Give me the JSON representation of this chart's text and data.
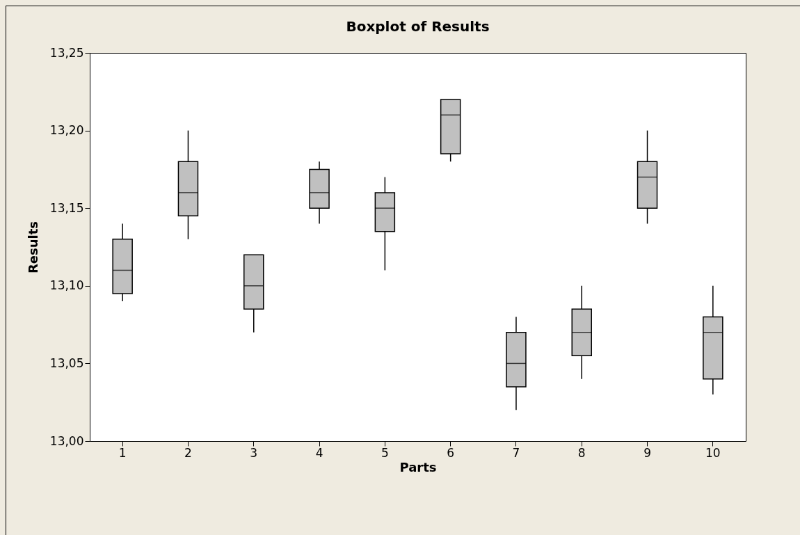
{
  "chart_data": {
    "type": "box",
    "title": "Boxplot of Results",
    "xlabel": "Parts",
    "ylabel": "Results",
    "categories": [
      "1",
      "2",
      "3",
      "4",
      "5",
      "6",
      "7",
      "8",
      "9",
      "10"
    ],
    "boxes": [
      {
        "low": 13.09,
        "q1": 13.095,
        "median": 13.11,
        "q3": 13.13,
        "high": 13.14
      },
      {
        "low": 13.13,
        "q1": 13.145,
        "median": 13.16,
        "q3": 13.18,
        "high": 13.2
      },
      {
        "low": 13.07,
        "q1": 13.085,
        "median": 13.1,
        "q3": 13.12,
        "high": 13.12
      },
      {
        "low": 13.14,
        "q1": 13.15,
        "median": 13.16,
        "q3": 13.175,
        "high": 13.18
      },
      {
        "low": 13.11,
        "q1": 13.135,
        "median": 13.15,
        "q3": 13.16,
        "high": 13.17
      },
      {
        "low": 13.18,
        "q1": 13.185,
        "median": 13.21,
        "q3": 13.22,
        "high": 13.22
      },
      {
        "low": 13.02,
        "q1": 13.035,
        "median": 13.05,
        "q3": 13.07,
        "high": 13.08
      },
      {
        "low": 13.04,
        "q1": 13.055,
        "median": 13.07,
        "q3": 13.085,
        "high": 13.1
      },
      {
        "low": 13.14,
        "q1": 13.15,
        "median": 13.17,
        "q3": 13.18,
        "high": 13.2
      },
      {
        "low": 13.03,
        "q1": 13.04,
        "median": 13.07,
        "q3": 13.08,
        "high": 13.1
      }
    ],
    "color": "#c0c0c0",
    "ylim": [
      13.0,
      13.25
    ],
    "yticks": [
      {
        "value": 13.0,
        "label": "13,00"
      },
      {
        "value": 13.05,
        "label": "13,05"
      },
      {
        "value": 13.1,
        "label": "13,10"
      },
      {
        "value": 13.15,
        "label": "13,15"
      },
      {
        "value": 13.2,
        "label": "13,20"
      },
      {
        "value": 13.25,
        "label": "13,25"
      }
    ],
    "grid": false
  }
}
